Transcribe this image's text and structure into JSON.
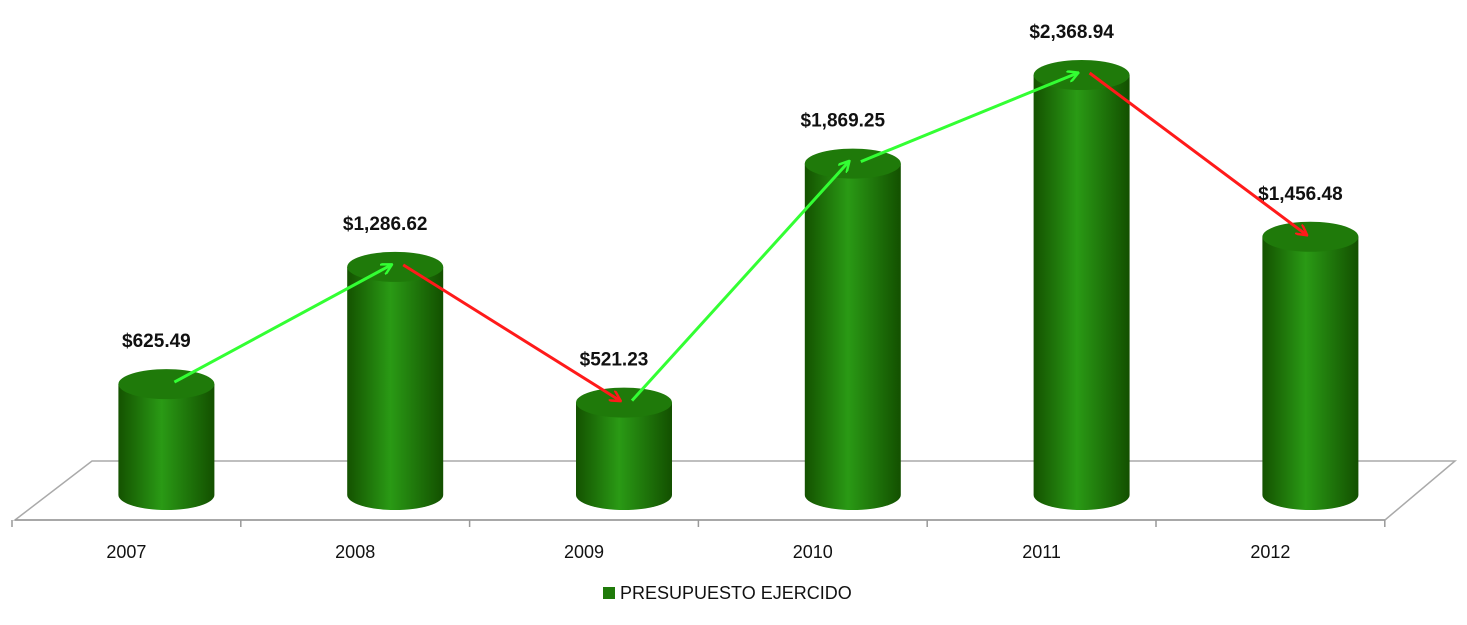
{
  "chart_data": {
    "type": "cylinder-bar",
    "categories": [
      "2007",
      "2008",
      "2009",
      "2010",
      "2011",
      "2012"
    ],
    "series": [
      {
        "name": "PRESUPUESTO EJERCIDO",
        "color": "#1f7a0a",
        "values": [
          625.49,
          1286.62,
          521.23,
          1869.25,
          2368.94,
          1456.48
        ],
        "value_labels": [
          "$625.49",
          "$1,286.62",
          "$521.23",
          "$1,869.25",
          "$2,368.94",
          "$1,456.48"
        ]
      }
    ],
    "arrow_colors": {
      "up": "#33ff33",
      "down": "#ff1a1a"
    },
    "legend": "bottom"
  }
}
